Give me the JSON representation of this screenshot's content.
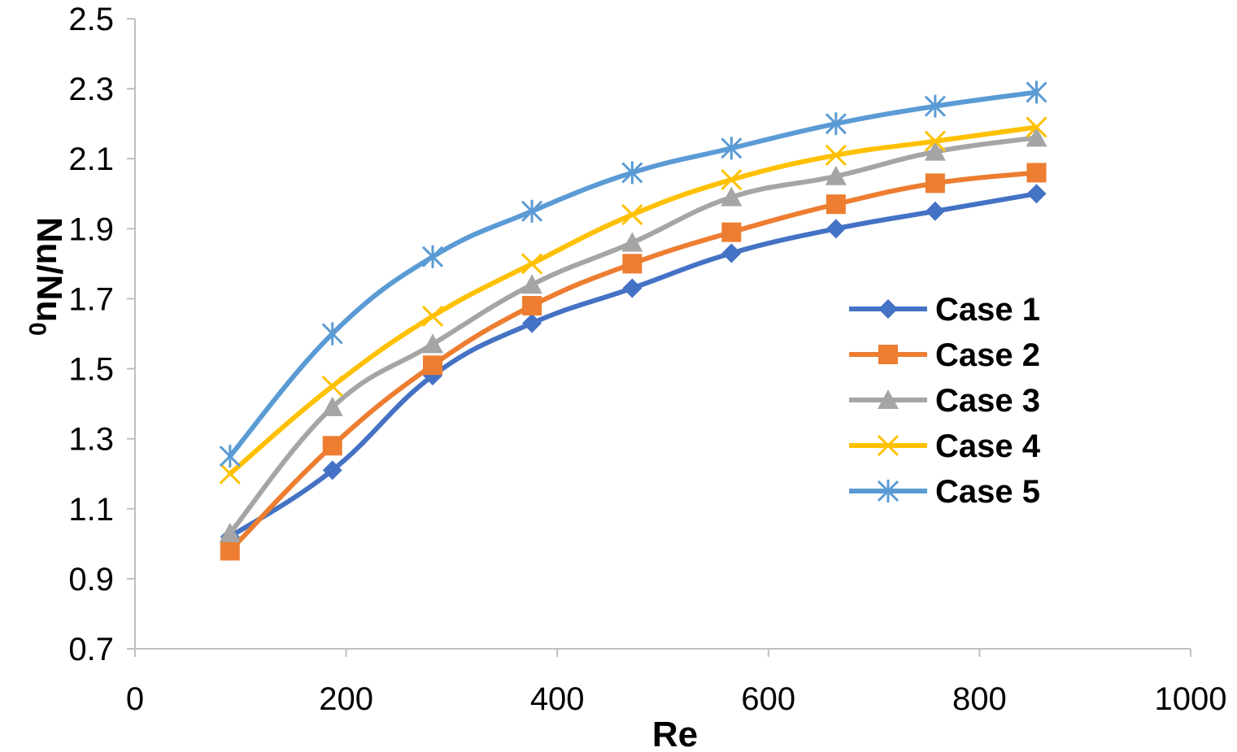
{
  "chart_data": {
    "type": "line",
    "title": "",
    "xlabel": "Re",
    "ylabel": "Nu/Nu",
    "ylabel_subscript": "0",
    "xlim": [
      0,
      1000
    ],
    "ylim": [
      0.7,
      2.5
    ],
    "x_ticks": [
      0,
      200,
      400,
      600,
      800,
      1000
    ],
    "x_tick_labels": [
      "0",
      "200",
      "400",
      "600",
      "800",
      "1000"
    ],
    "y_ticks": [
      0.7,
      0.9,
      1.1,
      1.3,
      1.5,
      1.7,
      1.9,
      2.1,
      2.3,
      2.5
    ],
    "y_tick_labels": [
      "0.7",
      "0.9",
      "1.1",
      "1.3",
      "1.5",
      "1.7",
      "1.9",
      "2.1",
      "2.3",
      "2.5"
    ],
    "grid": false,
    "legend_position": "right-middle",
    "x": [
      90,
      187,
      282,
      376,
      471,
      565,
      664,
      758,
      854
    ],
    "series": [
      {
        "name": "Case 1",
        "color": "#4472C4",
        "marker": "diamond",
        "values": [
          1.02,
          1.21,
          1.48,
          1.63,
          1.73,
          1.83,
          1.9,
          1.95,
          2.0
        ]
      },
      {
        "name": "Case 2",
        "color": "#ED7D31",
        "marker": "square",
        "values": [
          0.98,
          1.28,
          1.51,
          1.68,
          1.8,
          1.89,
          1.97,
          2.03,
          2.06
        ]
      },
      {
        "name": "Case 3",
        "color": "#A5A5A5",
        "marker": "triangle",
        "values": [
          1.03,
          1.39,
          1.57,
          1.74,
          1.86,
          1.99,
          2.05,
          2.12,
          2.16
        ]
      },
      {
        "name": "Case 4",
        "color": "#FFC000",
        "marker": "x",
        "values": [
          1.2,
          1.45,
          1.65,
          1.8,
          1.94,
          2.04,
          2.11,
          2.15,
          2.19
        ]
      },
      {
        "name": "Case 5",
        "color": "#5B9BD5",
        "marker": "star",
        "values": [
          1.25,
          1.6,
          1.82,
          1.95,
          2.06,
          2.13,
          2.2,
          2.25,
          2.29
        ]
      }
    ]
  },
  "colors": {
    "axis": "#BFBFBF",
    "text": "#000000"
  }
}
